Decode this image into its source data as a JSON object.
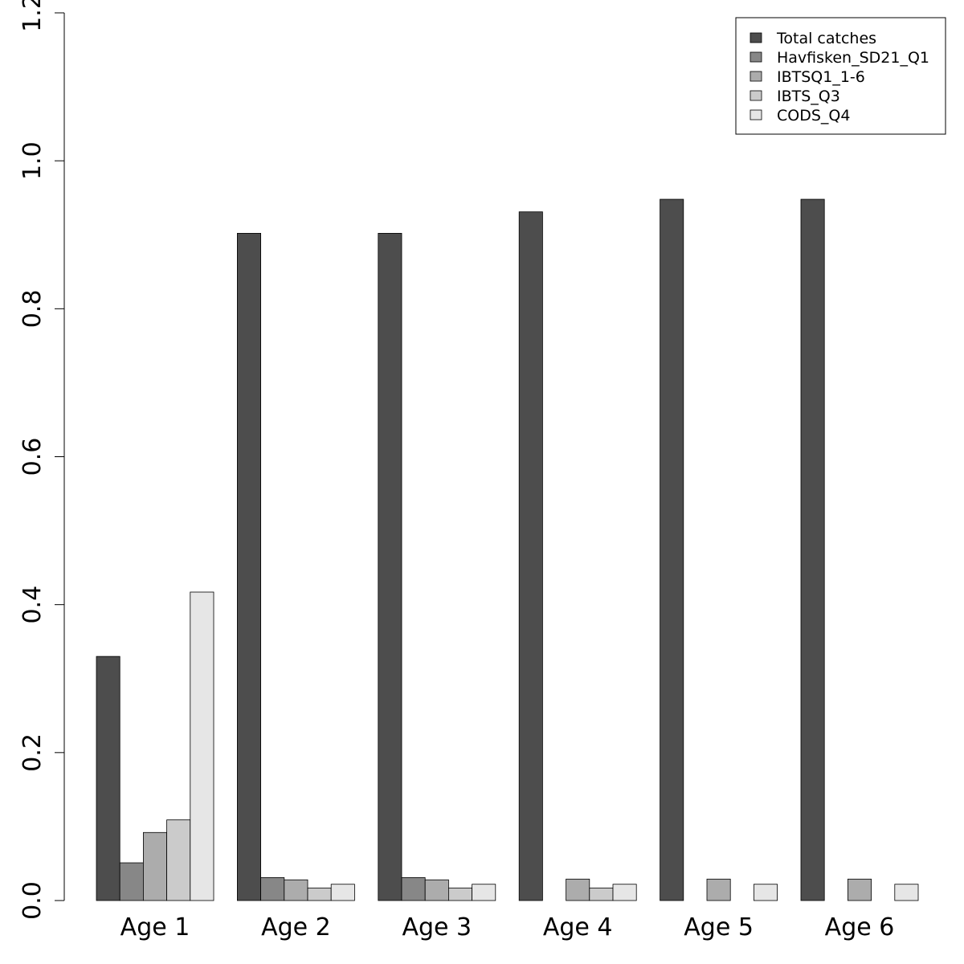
{
  "chart_data": {
    "type": "bar",
    "categories": [
      "Age 1",
      "Age 2",
      "Age 3",
      "Age 4",
      "Age 5",
      "Age 6"
    ],
    "series": [
      {
        "name": "Total catches",
        "color": "#4d4d4d",
        "values": [
          0.33,
          0.902,
          0.902,
          0.931,
          0.948,
          0.948
        ]
      },
      {
        "name": "Havfisken_SD21_Q1",
        "color": "#878787",
        "values": [
          0.051,
          0.031,
          0.031,
          0.0,
          0.0,
          0.0
        ]
      },
      {
        "name": "IBTSQ1_1-6",
        "color": "#acacac",
        "values": [
          0.092,
          0.028,
          0.028,
          0.029,
          0.029,
          0.029
        ]
      },
      {
        "name": "IBTS_Q3",
        "color": "#cbcbcb",
        "values": [
          0.109,
          0.017,
          0.017,
          0.017,
          0.0,
          0.0
        ]
      },
      {
        "name": "CODS_Q4",
        "color": "#e6e6e6",
        "values": [
          0.417,
          0.022,
          0.022,
          0.022,
          0.022,
          0.022
        ]
      }
    ],
    "ylim": [
      0,
      1.2
    ],
    "yticks": [
      "0.0",
      "0.2",
      "0.4",
      "0.6",
      "0.8",
      "1.0",
      "1.2"
    ],
    "title": "",
    "xlabel": "",
    "ylabel": "",
    "legend_position": "top-right",
    "grid": false
  }
}
